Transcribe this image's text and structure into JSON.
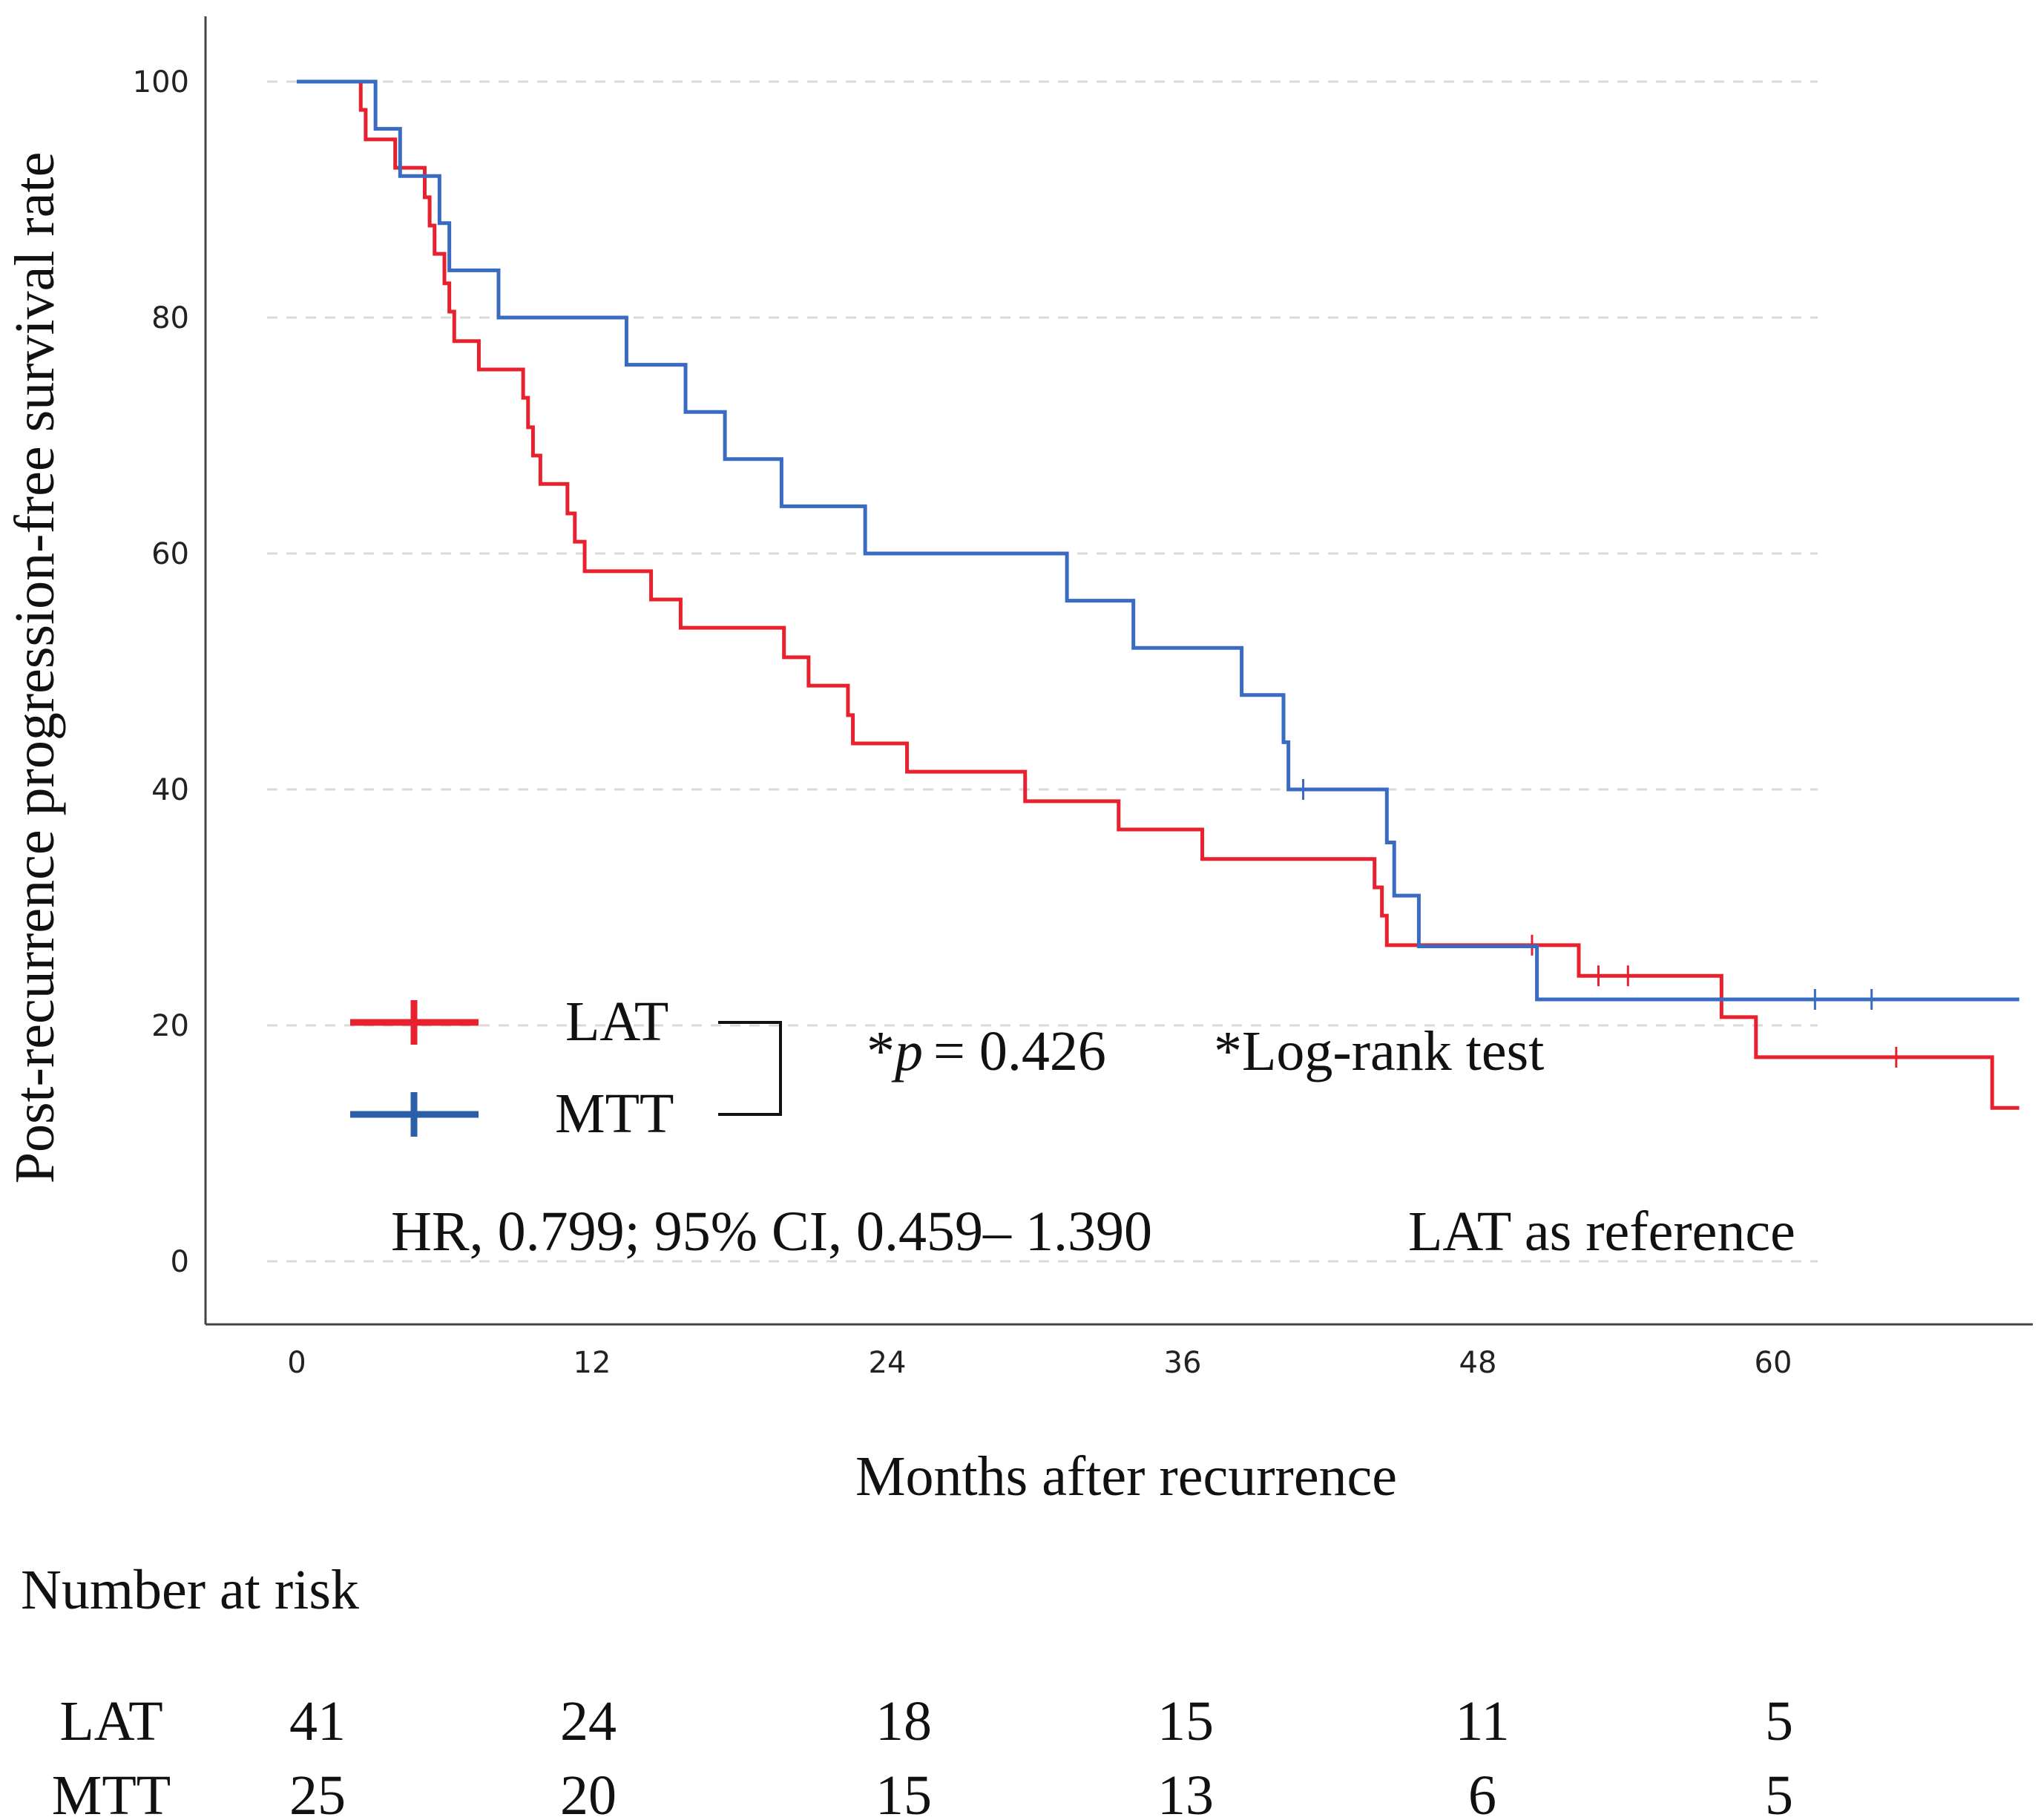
{
  "chart_data": {
    "type": "line",
    "subtype": "kaplan-meier step",
    "title": "",
    "xlabel": "Months after recurrence",
    "ylabel": "Post-recurrence progression-free survival rate",
    "xlim": [
      -12,
      70
    ],
    "ylim": [
      -5,
      106
    ],
    "xticks": [
      "0",
      "12",
      "24",
      "36",
      "48",
      "60"
    ],
    "yticks": [
      "0",
      "20",
      "40",
      "60",
      "80",
      "100"
    ],
    "grid": "horizontal dashed",
    "series": [
      {
        "name": "LAT",
        "color": "#e8212e",
        "steps": [
          [
            0,
            100
          ],
          [
            2.6,
            97.6
          ],
          [
            2.8,
            95.1
          ],
          [
            4,
            92.7
          ],
          [
            5.2,
            90.2
          ],
          [
            5.4,
            87.8
          ],
          [
            5.6,
            85.4
          ],
          [
            6,
            82.9
          ],
          [
            6.2,
            80.5
          ],
          [
            6.4,
            78
          ],
          [
            7.4,
            75.6
          ],
          [
            9.2,
            73.2
          ],
          [
            9.4,
            70.7
          ],
          [
            9.6,
            68.3
          ],
          [
            9.9,
            65.9
          ],
          [
            11,
            63.4
          ],
          [
            11.3,
            61
          ],
          [
            11.7,
            58.5
          ],
          [
            14.4,
            56.1
          ],
          [
            15.6,
            53.7
          ],
          [
            19.8,
            51.2
          ],
          [
            20.8,
            48.8
          ],
          [
            22.4,
            46.3
          ],
          [
            22.6,
            43.9
          ],
          [
            24.8,
            41.5
          ],
          [
            29.6,
            39
          ],
          [
            33.4,
            36.6
          ],
          [
            36.8,
            34.1
          ],
          [
            43.8,
            31.7
          ],
          [
            44.1,
            29.3
          ],
          [
            44.3,
            26.8
          ],
          [
            52.1,
            24.2
          ],
          [
            57.9,
            20.7
          ],
          [
            59.3,
            17.3
          ],
          [
            68.9,
            13
          ]
        ],
        "end_x": 70,
        "censored": [
          [
            50.2,
            26.8
          ],
          [
            52.9,
            24.2
          ],
          [
            54.1,
            24.2
          ],
          [
            65,
            17.3
          ]
        ]
      },
      {
        "name": "MTT",
        "color": "#3a6bc2",
        "steps": [
          [
            0,
            100
          ],
          [
            3.2,
            96
          ],
          [
            4.2,
            92
          ],
          [
            5.8,
            88
          ],
          [
            6.2,
            84
          ],
          [
            8.2,
            80
          ],
          [
            13.4,
            76
          ],
          [
            15.8,
            72
          ],
          [
            17.4,
            68
          ],
          [
            19.7,
            64
          ],
          [
            23.1,
            60
          ],
          [
            31.3,
            56
          ],
          [
            34,
            52
          ],
          [
            38.4,
            48
          ],
          [
            40.1,
            44
          ],
          [
            40.3,
            40
          ],
          [
            44.3,
            35.5
          ],
          [
            44.6,
            31
          ],
          [
            45.6,
            26.7
          ],
          [
            50.4,
            22.2
          ]
        ],
        "end_x": 70,
        "censored": [
          [
            40.9,
            40
          ],
          [
            61.7,
            22.2
          ],
          [
            64,
            22.2
          ]
        ]
      }
    ],
    "legend": {
      "position": "lower-left",
      "entries": [
        "LAT",
        "MTT"
      ]
    },
    "annotations": {
      "p_prefix": "*",
      "p_symbol": "p",
      "p_value": "= 0.426",
      "test": "*Log-rank test",
      "hr": "HR, 0.799; 95% CI, 0.459– 1.390",
      "reference": "LAT as reference"
    },
    "risk_table": {
      "title": "Number at risk",
      "rows": [
        {
          "label": "LAT",
          "values": [
            "41",
            "24",
            "18",
            "15",
            "11",
            "5"
          ]
        },
        {
          "label": "MTT",
          "values": [
            "25",
            "20",
            "15",
            "13",
            "6",
            "5"
          ]
        }
      ]
    }
  }
}
